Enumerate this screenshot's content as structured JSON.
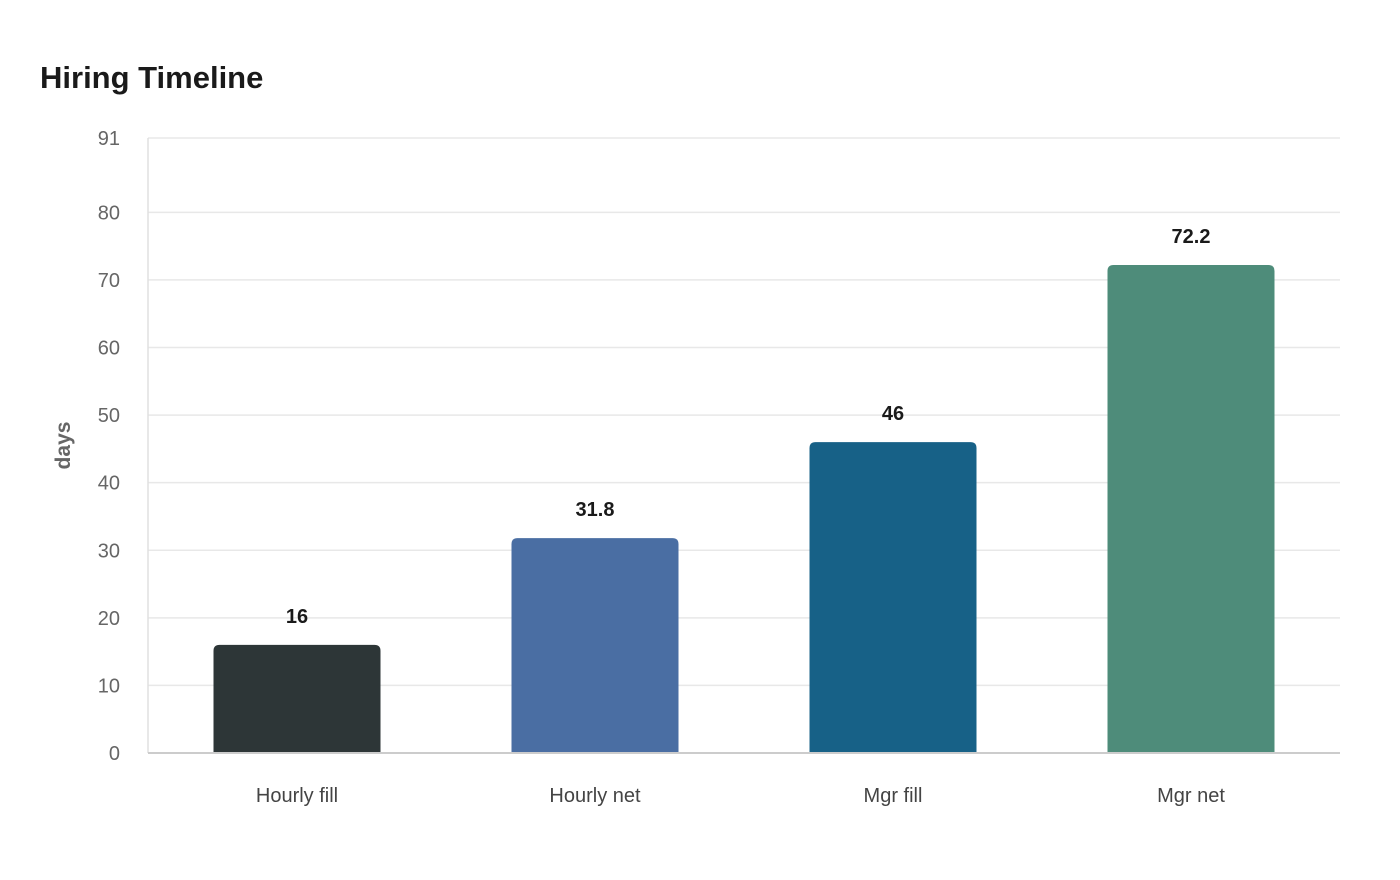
{
  "chart_data": {
    "type": "bar",
    "title": "Hiring Timeline",
    "xlabel": "",
    "ylabel": "days",
    "categories": [
      "Hourly fill",
      "Hourly net",
      "Mgr fill",
      "Mgr net"
    ],
    "values": [
      16,
      31.8,
      46,
      72.2
    ],
    "value_labels": [
      "16",
      "31.8",
      "46",
      "72.2"
    ],
    "colors": [
      "#2d3637",
      "#4a6ea3",
      "#176187",
      "#4e8c7a"
    ],
    "ylim": [
      0,
      91
    ],
    "yticks": [
      0,
      10,
      20,
      30,
      40,
      50,
      60,
      70,
      80,
      91
    ],
    "grid": true,
    "legend": "none"
  }
}
